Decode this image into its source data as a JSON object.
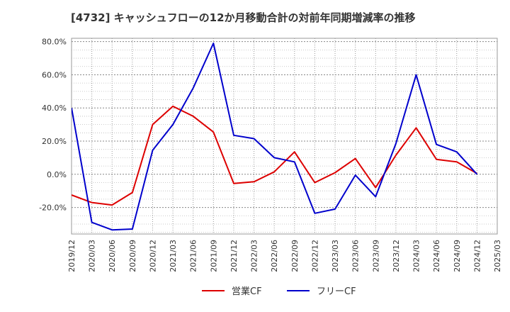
{
  "chart_data": {
    "type": "line",
    "title": "[4732]  キャッシュフローの12か月移動合計の対前年同期増減率の推移",
    "xlabel": "",
    "ylabel": "",
    "categories": [
      "2019/12",
      "2020/03",
      "2020/06",
      "2020/09",
      "2020/12",
      "2021/03",
      "2021/06",
      "2021/09",
      "2021/12",
      "2022/03",
      "2022/06",
      "2022/09",
      "2022/12",
      "2023/03",
      "2023/06",
      "2023/09",
      "2023/12",
      "2024/03",
      "2024/06",
      "2024/09",
      "2024/12",
      "2025/03"
    ],
    "ylim": [
      -36,
      82
    ],
    "yticks": [
      80,
      60,
      40,
      20,
      0,
      -20
    ],
    "ytick_labels": [
      "80.0%",
      "60.0%",
      "40.0%",
      "20.0%",
      "0.0%",
      "-20.0%"
    ],
    "grid": true,
    "legend_position": "bottom",
    "series": [
      {
        "name": "営業CF",
        "color": "#dd0000",
        "values": [
          -12.5,
          -17,
          -18.5,
          -11,
          30,
          41,
          35,
          25.5,
          -5.5,
          -4.5,
          1.5,
          13.5,
          -5,
          1,
          9.5,
          -8,
          11.5,
          28,
          9,
          7.5,
          0.5,
          null
        ]
      },
      {
        "name": "フリーCF",
        "color": "#0000cc",
        "values": [
          40,
          -29,
          -33.5,
          -33,
          14.5,
          30,
          52,
          79,
          23.5,
          21.5,
          10,
          7.5,
          -23.5,
          -21,
          -0.5,
          -13.5,
          18.5,
          60,
          18,
          13.5,
          0,
          null
        ]
      }
    ]
  }
}
